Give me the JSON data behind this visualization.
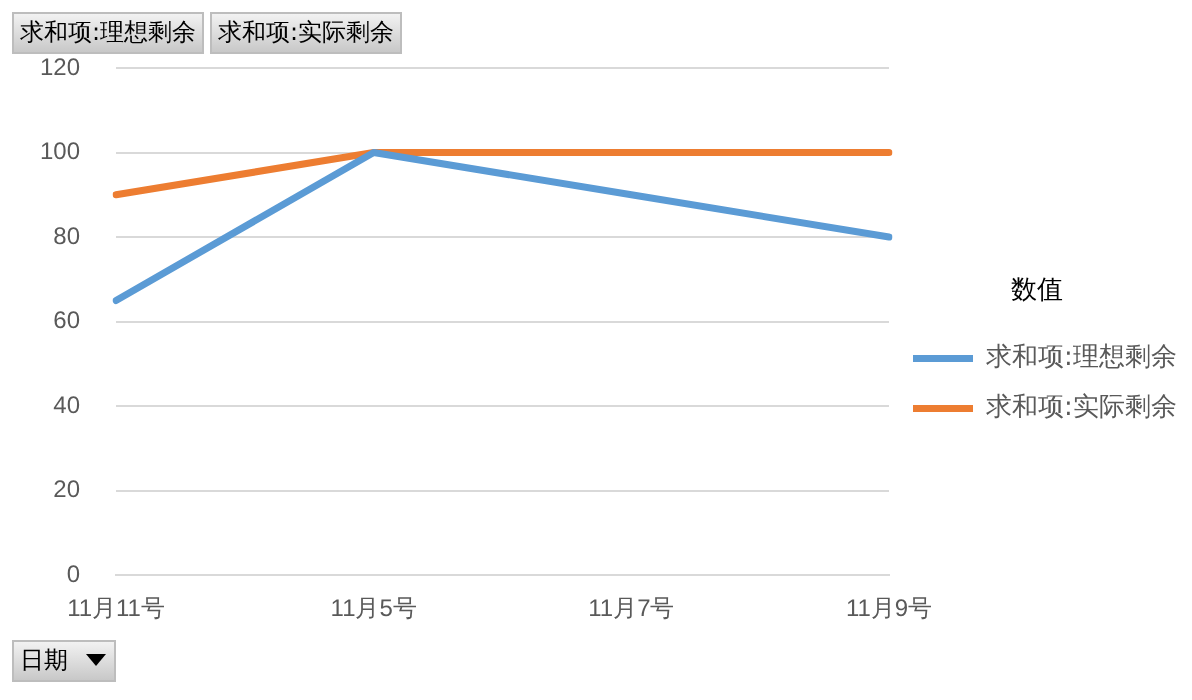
{
  "chart_data": {
    "type": "line",
    "xlabel": "日期",
    "legend_title": "数值",
    "categories": [
      "11月11号",
      "11月5号",
      "11月7号",
      "11月9号"
    ],
    "series": [
      {
        "name": "求和项:理想剩余",
        "color": "#5b9bd5",
        "values": [
          65,
          100,
          90,
          80
        ]
      },
      {
        "name": "求和项:实际剩余",
        "color": "#ed7d31",
        "values": [
          90,
          100,
          100,
          100
        ]
      }
    ],
    "ylim": [
      0,
      120
    ],
    "yticks": [
      0,
      20,
      40,
      60,
      80,
      100,
      120
    ],
    "grid": "y",
    "legend": "right",
    "marker": "none"
  }
}
